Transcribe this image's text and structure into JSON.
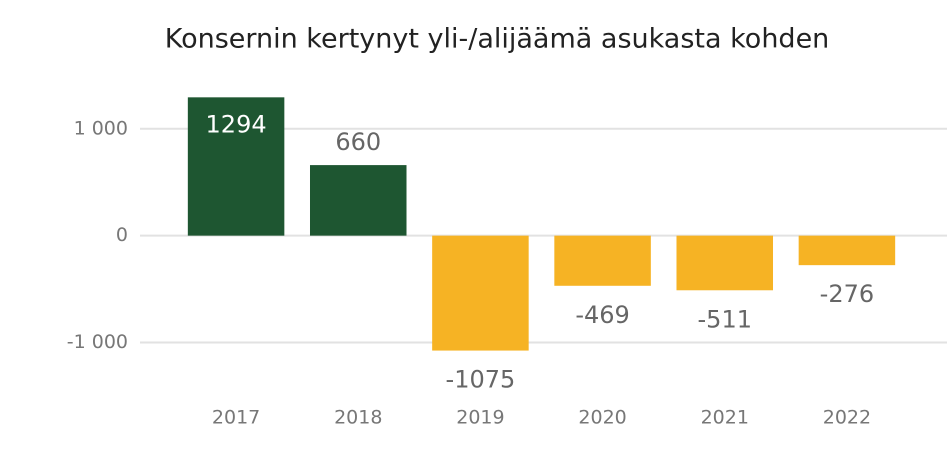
{
  "chart_data": {
    "type": "bar",
    "title": "Konsernin kertynyt yli-/alijäämä asukasta kohden",
    "categories": [
      "2017",
      "2018",
      "2019",
      "2020",
      "2021",
      "2022"
    ],
    "values": [
      1294,
      660,
      -1075,
      -469,
      -511,
      -276
    ],
    "positive_color": "#1e5631",
    "negative_color": "#f6b324",
    "ylim": [
      -1500,
      1400
    ],
    "yticks": [
      {
        "value": -1000,
        "label": "-1 000"
      },
      0,
      {
        "value": 1000,
        "label": "1 000"
      }
    ],
    "grid": true
  }
}
